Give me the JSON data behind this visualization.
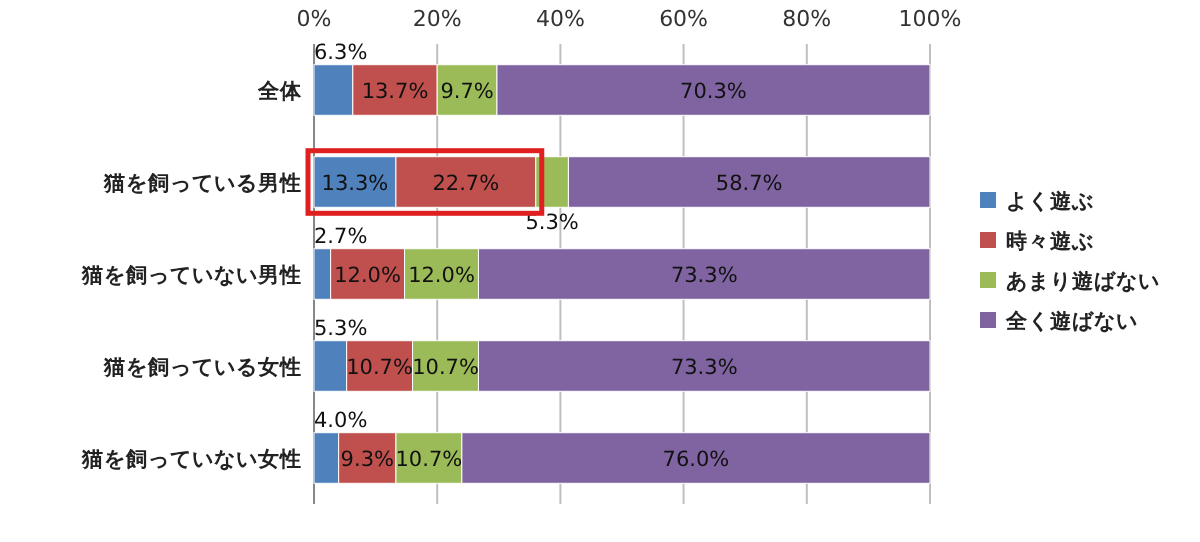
{
  "chart_data": {
    "type": "bar",
    "orientation": "horizontal",
    "stacked": true,
    "categories": [
      "全体",
      "猫を飼っている男性",
      "猫を飼っていない男性",
      "猫を飼っている女性",
      "猫を飼っていない女性"
    ],
    "series": [
      {
        "name": "よく遊ぶ",
        "color": "#4f81bd",
        "values": [
          6.3,
          13.3,
          2.7,
          5.3,
          4.0
        ],
        "value_labels": [
          "6.3%",
          "13.3%",
          "2.7%",
          "5.3%",
          "4.0%"
        ]
      },
      {
        "name": "時々遊ぶ",
        "color": "#c0504d",
        "values": [
          13.7,
          22.7,
          12.0,
          10.7,
          9.3
        ],
        "value_labels": [
          "13.7%",
          "22.7%",
          "12.0%",
          "10.7%",
          "9.3%"
        ]
      },
      {
        "name": "あまり遊ばない",
        "color": "#9bbb59",
        "values": [
          9.7,
          5.3,
          12.0,
          10.7,
          10.7
        ],
        "value_labels": [
          "9.7%",
          "5.3%",
          "12.0%",
          "10.7%",
          "10.7%"
        ]
      },
      {
        "name": "全く遊ばない",
        "color": "#8064a2",
        "values": [
          70.3,
          58.7,
          73.3,
          73.3,
          76.0
        ],
        "value_labels": [
          "70.3%",
          "58.7%",
          "73.3%",
          "73.3%",
          "76.0%"
        ]
      }
    ],
    "xlim": [
      0,
      100
    ],
    "xticks": [
      {
        "value": 0,
        "label": "0%"
      },
      {
        "value": 20,
        "label": "20%"
      },
      {
        "value": 40,
        "label": "40%"
      },
      {
        "value": 60,
        "label": "60%"
      },
      {
        "value": 80,
        "label": "80%"
      },
      {
        "value": 100,
        "label": "100%"
      }
    ],
    "grid": "x",
    "legend": "right"
  }
}
